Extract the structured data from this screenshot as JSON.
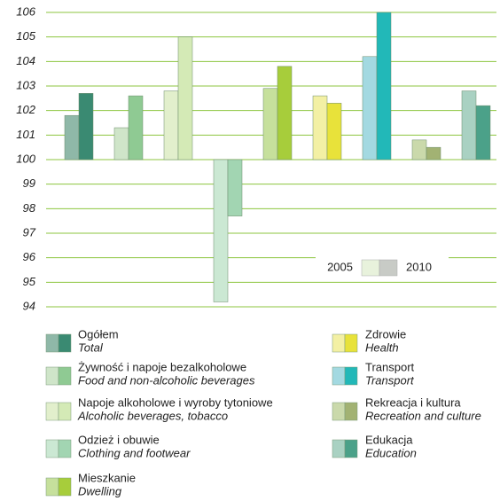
{
  "chart_data": {
    "type": "bar",
    "categories": [
      "Ogółem",
      "Żywność i napoje bezalkoholowe",
      "Napoje alkoholowe i wyroby tytoniowe",
      "Odzież i obuwie",
      "Mieszkanie",
      "Zdrowie",
      "Transport",
      "Rekreacja i kultura",
      "Edukacja"
    ],
    "categories_en": [
      "Total",
      "Food and non-alcoholic beverages",
      "Alcoholic beverages, tobacco",
      "Clothing and footwear",
      "Dwelling",
      "Health",
      "Transport",
      "Recreation and culture",
      "Education"
    ],
    "series": [
      {
        "name": "2005",
        "color": "#e8f2dc",
        "colors": [
          "#8fb8a8",
          "#cfe5c9",
          "#e2efcc",
          "#cbe8d3",
          "#c6e09c",
          "#f3f0a4",
          "#a3d9e1",
          "#cad9ab",
          "#a9d1c2"
        ],
        "values": [
          101.8,
          101.3,
          102.8,
          94.2,
          102.9,
          102.6,
          104.2,
          100.8,
          102.8
        ]
      },
      {
        "name": "2010",
        "color": "#c8cbc6",
        "colors": [
          "#3a8a72",
          "#8fca93",
          "#d4eab6",
          "#a2d5b2",
          "#a7cd3b",
          "#e8e23a",
          "#22b8b8",
          "#a2b273",
          "#4ba189"
        ],
        "values": [
          102.7,
          102.6,
          105.0,
          97.7,
          103.8,
          102.3,
          106.0,
          100.5,
          102.2
        ]
      }
    ],
    "baseline": 100,
    "ylim": [
      94,
      106
    ],
    "yticks": [
      94,
      95,
      96,
      97,
      98,
      99,
      100,
      101,
      102,
      103,
      104,
      105,
      106
    ],
    "grid": true,
    "grid_color": "#8dc63f"
  }
}
